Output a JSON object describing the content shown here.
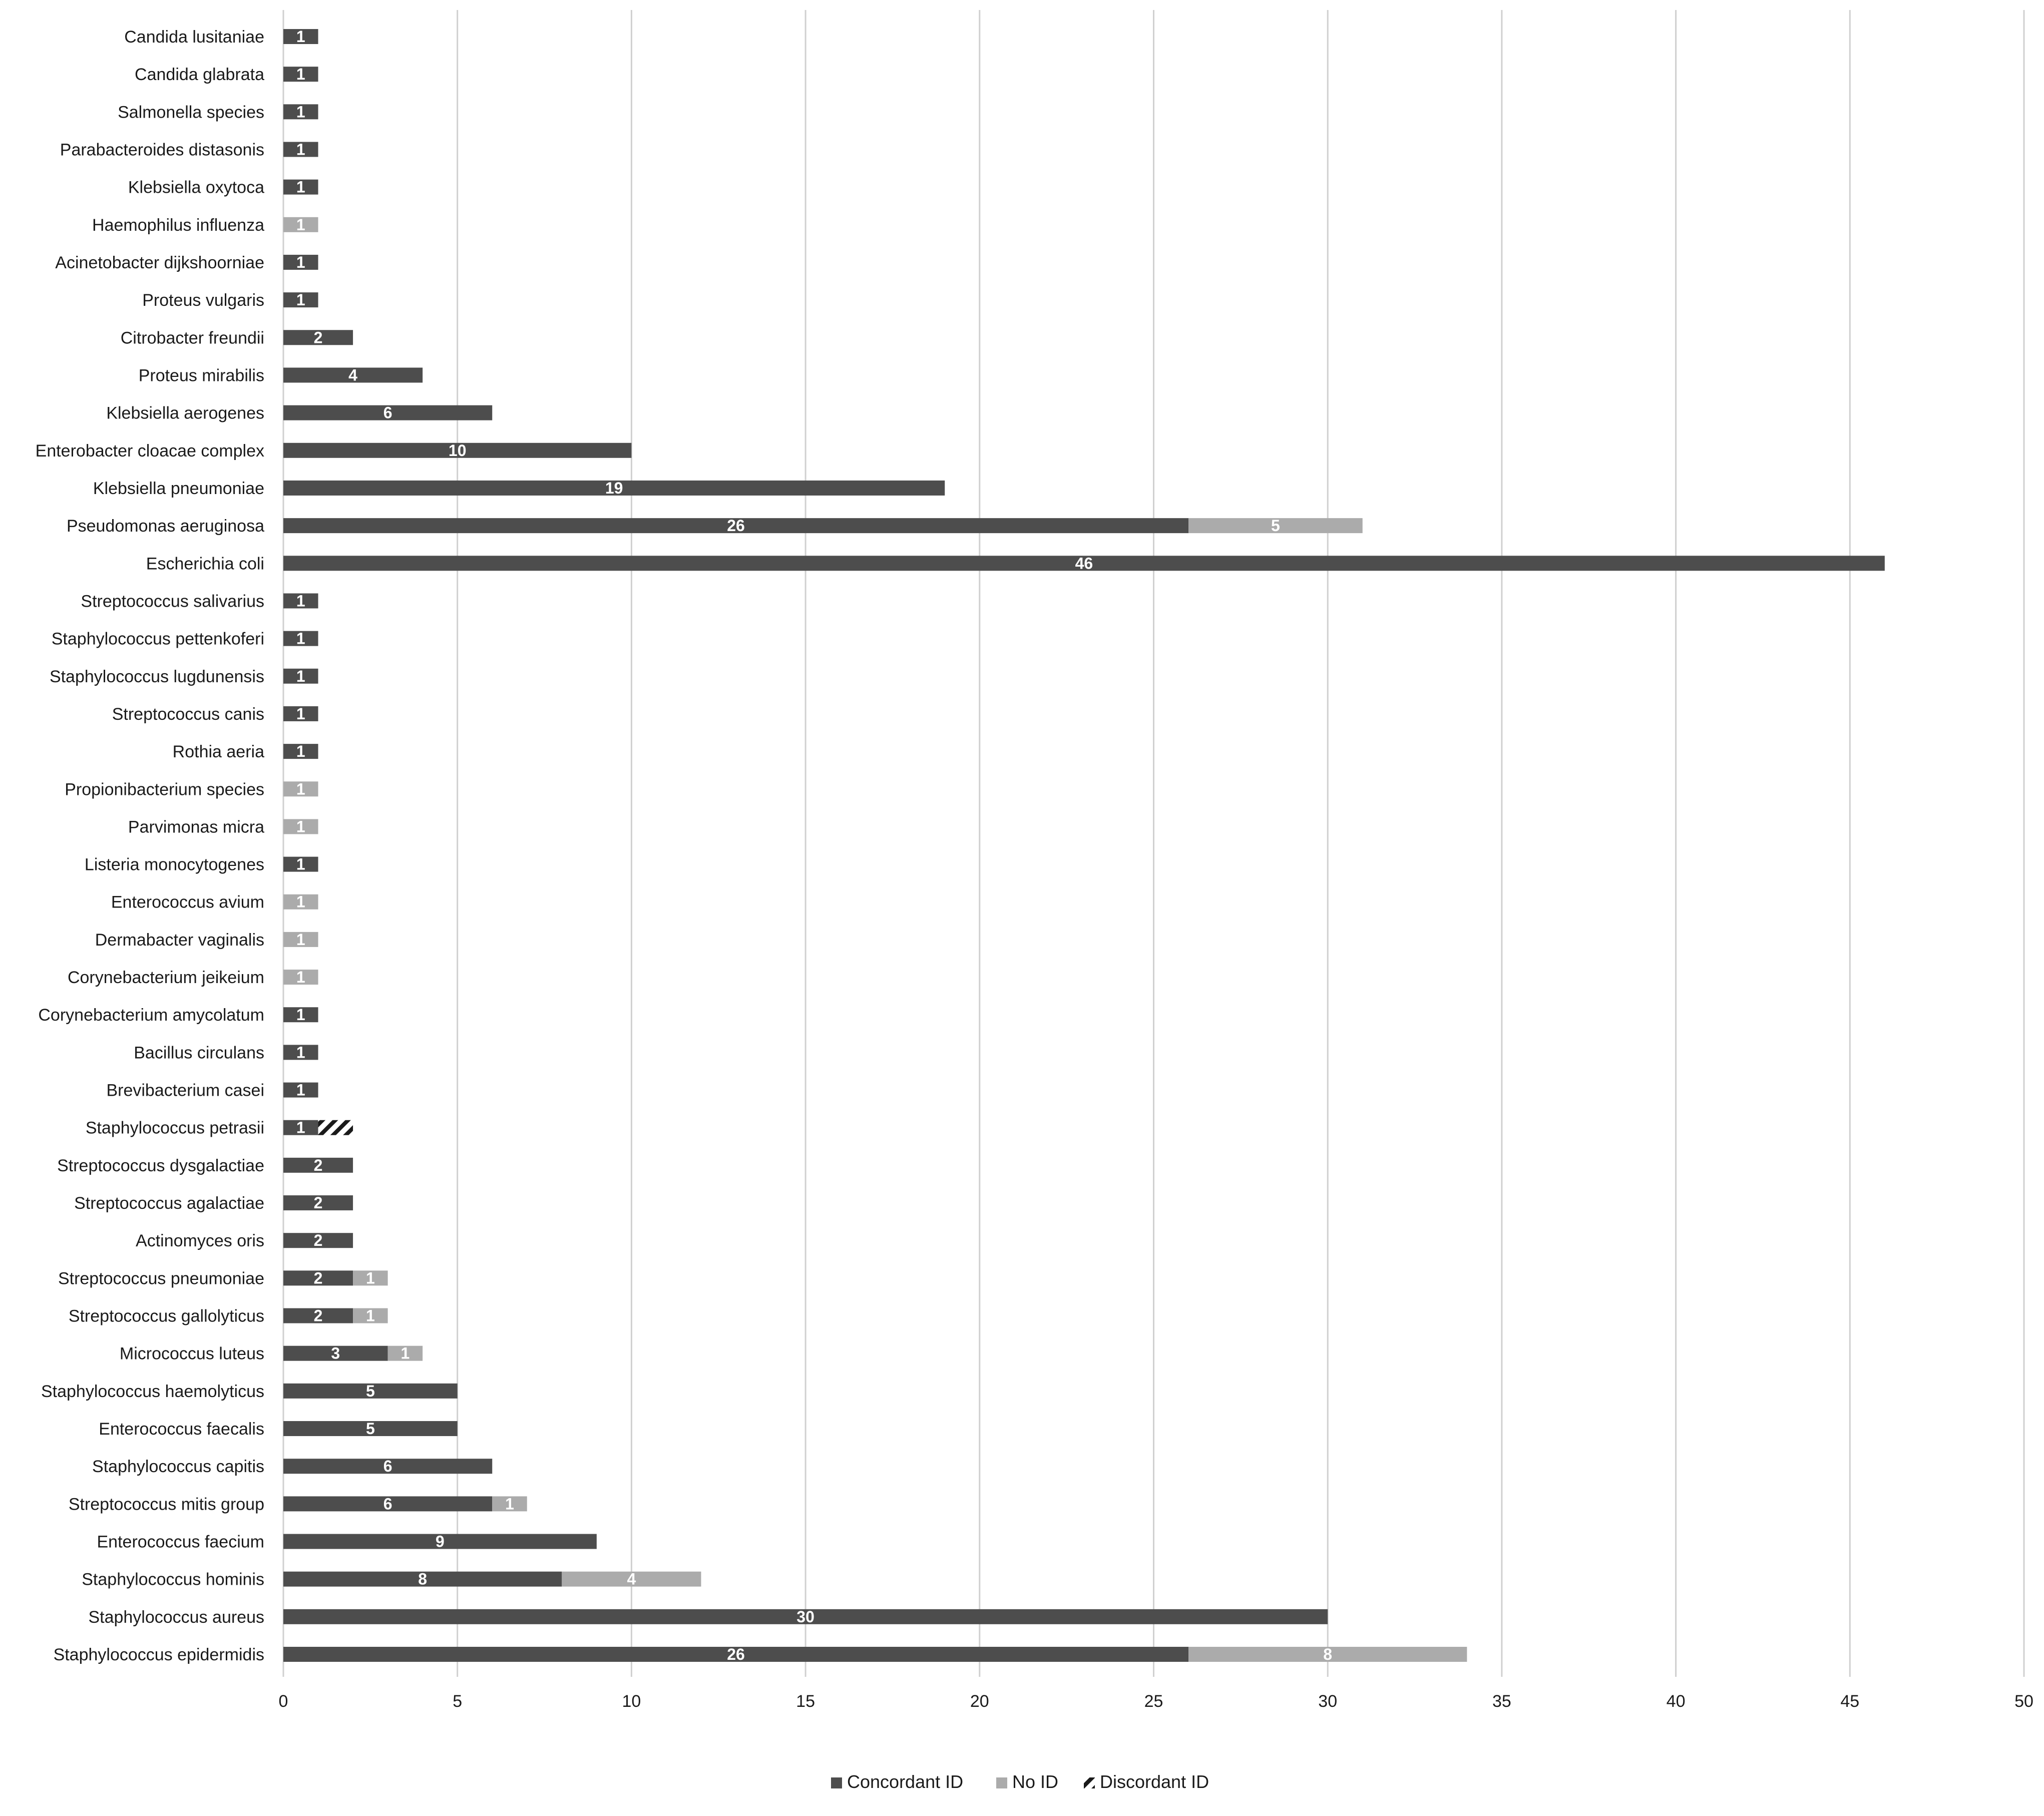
{
  "chart_data": {
    "type": "bar",
    "orientation": "horizontal",
    "stacked": true,
    "title": "",
    "xlabel": "",
    "ylabel": "",
    "xlim": [
      0,
      50
    ],
    "x_ticks": [
      0,
      5,
      10,
      15,
      20,
      25,
      30,
      35,
      40,
      45,
      50
    ],
    "grid": "vertical",
    "legend_position": "bottom",
    "categories": [
      "Candida lusitaniae",
      "Candida glabrata",
      "Salmonella species",
      "Parabacteroides distasonis",
      "Klebsiella oxytoca",
      "Haemophilus influenza",
      "Acinetobacter dijkshoorniae",
      "Proteus vulgaris",
      "Citrobacter freundii",
      "Proteus mirabilis",
      "Klebsiella aerogenes",
      "Enterobacter cloacae complex",
      "Klebsiella pneumoniae",
      "Pseudomonas aeruginosa",
      "Escherichia coli",
      "Streptococcus salivarius",
      "Staphylococcus pettenkoferi",
      "Staphylococcus lugdunensis",
      "Streptococcus canis",
      "Rothia aeria",
      "Propionibacterium species",
      "Parvimonas micra",
      "Listeria monocytogenes",
      "Enterococcus avium",
      "Dermabacter vaginalis",
      "Corynebacterium jeikeium",
      "Corynebacterium amycolatum",
      "Bacillus circulans",
      "Brevibacterium casei",
      "Staphylococcus petrasii",
      "Streptococcus dysgalactiae",
      "Streptococcus agalactiae",
      "Actinomyces oris",
      "Streptococcus pneumoniae",
      "Streptococcus gallolyticus",
      "Micrococcus luteus",
      "Staphylococcus haemolyticus",
      "Enterococcus faecalis",
      "Staphylococcus capitis",
      "Streptococcus mitis group",
      "Enterococcus faecium",
      "Staphylococcus hominis",
      "Staphylococcus aureus",
      "Staphylococcus epidermidis"
    ],
    "series": [
      {
        "name": "Concordant ID",
        "color": "#4d4d4d",
        "values": [
          1,
          1,
          1,
          1,
          1,
          0,
          1,
          1,
          2,
          4,
          6,
          10,
          19,
          26,
          46,
          1,
          1,
          1,
          1,
          1,
          0,
          0,
          1,
          0,
          0,
          0,
          1,
          1,
          1,
          1,
          2,
          2,
          2,
          2,
          2,
          3,
          5,
          5,
          6,
          6,
          9,
          8,
          30,
          26
        ]
      },
      {
        "name": "No ID",
        "color": "#ababab",
        "values": [
          0,
          0,
          0,
          0,
          0,
          1,
          0,
          0,
          0,
          0,
          0,
          0,
          0,
          5,
          0,
          0,
          0,
          0,
          0,
          0,
          1,
          1,
          0,
          1,
          1,
          1,
          0,
          0,
          0,
          0,
          0,
          0,
          0,
          1,
          1,
          1,
          0,
          0,
          0,
          1,
          0,
          4,
          0,
          8
        ]
      },
      {
        "name": "Discordant ID",
        "color": "#1a1a1a",
        "values": [
          0,
          0,
          0,
          0,
          0,
          0,
          0,
          0,
          0,
          0,
          0,
          0,
          0,
          0,
          0,
          0,
          0,
          0,
          0,
          0,
          0,
          0,
          0,
          0,
          0,
          0,
          0,
          0,
          0,
          1,
          0,
          0,
          0,
          0,
          0,
          0,
          0,
          0,
          0,
          0,
          0,
          0,
          0,
          0
        ]
      }
    ]
  }
}
